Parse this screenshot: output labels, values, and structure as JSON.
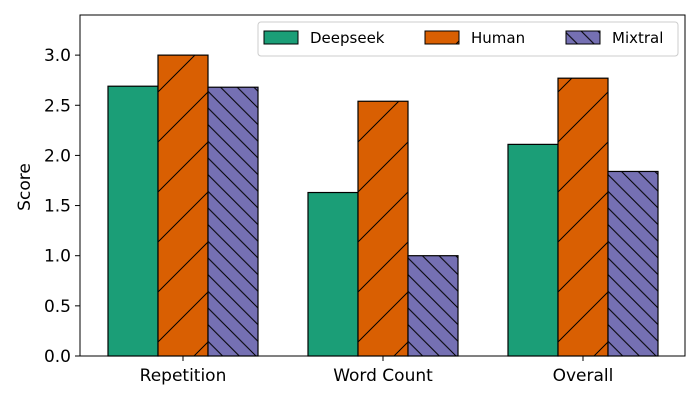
{
  "chart_data": {
    "type": "bar",
    "title": "",
    "xlabel": "",
    "ylabel": "Score",
    "categories": [
      "Repetition",
      "Word Count",
      "Overall"
    ],
    "ylim": [
      0,
      3.4
    ],
    "yticks": [
      0.0,
      0.5,
      1.0,
      1.5,
      2.0,
      2.5,
      3.0
    ],
    "ytick_labels": [
      "0.0",
      "0.5",
      "1.0",
      "1.5",
      "2.0",
      "2.5",
      "3.0"
    ],
    "grid": false,
    "legend_position": "top-right",
    "legend_columns": 3,
    "series": [
      {
        "name": "Deepseek",
        "color": "#1b9e77",
        "hatch": "none",
        "values": [
          2.69,
          1.63,
          2.11
        ]
      },
      {
        "name": "Human",
        "color": "#d95f02",
        "hatch": "forward-diagonal",
        "values": [
          3.0,
          2.54,
          2.77
        ]
      },
      {
        "name": "Mixtral",
        "color": "#7570b3",
        "hatch": "back-diagonal",
        "values": [
          2.68,
          1.0,
          1.84
        ]
      }
    ]
  }
}
